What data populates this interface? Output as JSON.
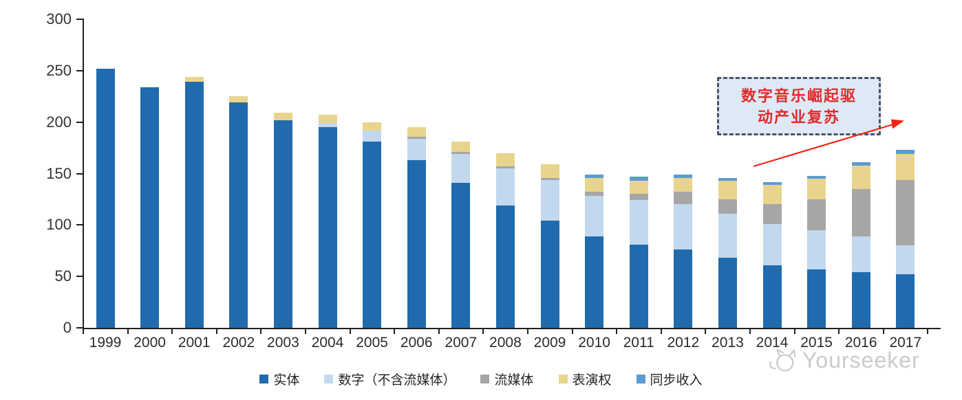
{
  "chart_data": {
    "type": "bar",
    "stacked": true,
    "title": "",
    "xlabel": "",
    "ylabel": "",
    "categories": [
      "1999",
      "2000",
      "2001",
      "2002",
      "2003",
      "2004",
      "2005",
      "2006",
      "2007",
      "2008",
      "2009",
      "2010",
      "2011",
      "2012",
      "2013",
      "2014",
      "2015",
      "2016",
      "2017"
    ],
    "series": [
      {
        "key": "physical",
        "name": "实体",
        "color": "#1F6BAE",
        "values": [
          252,
          234,
          239,
          219,
          202,
          195,
          181,
          163,
          141,
          119,
          104,
          89,
          81,
          76,
          68,
          61,
          57,
          54,
          52
        ]
      },
      {
        "key": "digital-ex-streaming",
        "name": "数字（不含流媒体）",
        "color": "#C2D8EE",
        "values": [
          0,
          0,
          0,
          0,
          0,
          4,
          11,
          21,
          28,
          36,
          40,
          39,
          43,
          44,
          43,
          40,
          38,
          35,
          28
        ]
      },
      {
        "key": "streaming",
        "name": "流媒体",
        "color": "#A6A6A6",
        "values": [
          0,
          0,
          0,
          0,
          0,
          0,
          0,
          2,
          2,
          2,
          2,
          4,
          6,
          12,
          14,
          19,
          30,
          46,
          64
        ]
      },
      {
        "key": "performance-rights",
        "name": "表演权",
        "color": "#E8D48D",
        "values": [
          0,
          0,
          5,
          6,
          7,
          8,
          8,
          9,
          10,
          13,
          13,
          14,
          13,
          14,
          18,
          19,
          20,
          23,
          25
        ]
      },
      {
        "key": "sync",
        "name": "同步收入",
        "color": "#5B9BD5",
        "values": [
          0,
          0,
          0,
          0,
          0,
          0,
          0,
          0,
          0,
          0,
          0,
          3,
          4,
          3,
          3,
          3,
          3,
          3,
          4
        ]
      }
    ],
    "ylim": [
      0,
      300
    ],
    "yticks": [
      0,
      50,
      100,
      150,
      200,
      250,
      300
    ],
    "grid": false,
    "legend_position": "bottom"
  },
  "annotation": {
    "line1": "数字音乐崛起驱",
    "line2": "动产业复苏",
    "text_color": "#E02B2B",
    "border_color": "#44546A",
    "fill_color": "#DEE9F6",
    "arrow_color": "#F22613"
  },
  "watermark": {
    "text": "Yourseeker",
    "color": "#c7c7c7"
  }
}
